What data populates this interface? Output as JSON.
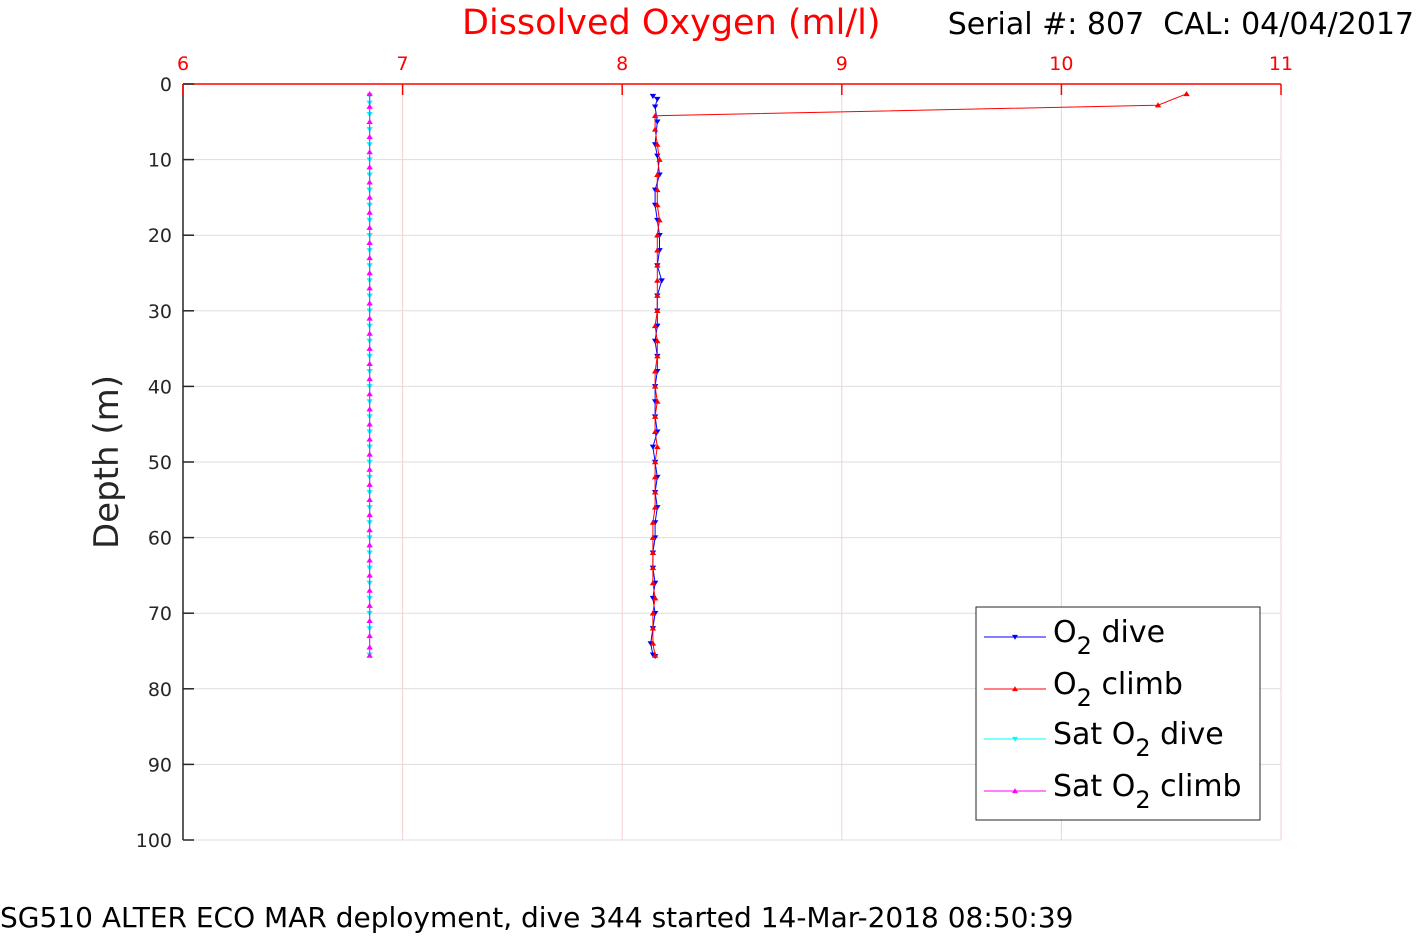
{
  "chart_data": {
    "type": "line",
    "title": "Dissolved Oxygen (ml/l)",
    "subtitle": "Serial #: 807  CAL: 04/04/2017",
    "xlabel": "",
    "ylabel": "Depth (m)",
    "caption": "SG510 ALTER ECO MAR deployment, dive 344 started 14-Mar-2018 08:50:39",
    "xlim": [
      6,
      11
    ],
    "ylim": [
      0,
      100
    ],
    "y_reversed": true,
    "x_axis_position": "top",
    "xticks": [
      6,
      7,
      8,
      9,
      10,
      11
    ],
    "yticks": [
      0,
      10,
      20,
      30,
      40,
      50,
      60,
      70,
      80,
      90,
      100
    ],
    "grid": true,
    "legend_placement": "bottom-right",
    "colors": {
      "title": "#ff0000",
      "xaxis": "#ff0000",
      "vgrid": "#f5d0d0",
      "hgrid": "#dddddd"
    },
    "series": [
      {
        "name": "O2 dive",
        "legend": {
          "prefix": "O",
          "sub": "2",
          "suffix": " dive"
        },
        "color": "#0000ff",
        "marker": "triangle-down",
        "x": [
          8.14,
          8.16,
          8.15,
          8.16,
          8.15,
          8.16,
          8.17,
          8.15,
          8.15,
          8.16,
          8.17,
          8.17,
          8.16,
          8.18,
          8.16,
          8.16,
          8.16,
          8.15,
          8.16,
          8.16,
          8.15,
          8.15,
          8.15,
          8.16,
          8.14,
          8.15,
          8.16,
          8.15,
          8.16,
          8.15,
          8.15,
          8.14,
          8.14,
          8.15,
          8.14,
          8.15,
          8.14,
          8.13,
          8.14,
          8.15
        ],
        "y": [
          1.6,
          2.0,
          3.0,
          5.0,
          8.0,
          9.5,
          12,
          14,
          16,
          18,
          20,
          22,
          24,
          26,
          28,
          30,
          32,
          34,
          36,
          38,
          40,
          42,
          44,
          46,
          48,
          50,
          52,
          54,
          56,
          58,
          60,
          62,
          64,
          66,
          68,
          70,
          72,
          74,
          75.5,
          75.7
        ]
      },
      {
        "name": "O2 climb",
        "legend": {
          "prefix": "O",
          "sub": "2",
          "suffix": " climb"
        },
        "color": "#ff0000",
        "marker": "triangle-up",
        "x": [
          10.57,
          10.44,
          8.15,
          8.15,
          8.16,
          8.17,
          8.16,
          8.16,
          8.16,
          8.17,
          8.16,
          8.16,
          8.16,
          8.16,
          8.16,
          8.16,
          8.15,
          8.16,
          8.16,
          8.15,
          8.15,
          8.16,
          8.15,
          8.15,
          8.16,
          8.15,
          8.15,
          8.15,
          8.15,
          8.14,
          8.14,
          8.14,
          8.14,
          8.14,
          8.15,
          8.14,
          8.14,
          8.14,
          8.15
        ],
        "y": [
          1.3,
          2.8,
          4.2,
          6,
          8,
          10,
          12,
          14,
          16,
          18,
          20,
          22,
          24,
          26,
          28,
          30,
          32,
          34,
          36,
          38,
          40,
          42,
          44,
          46,
          48,
          50,
          52,
          54,
          56,
          58,
          60,
          62,
          64,
          66,
          68,
          70,
          72,
          74,
          75.6
        ]
      },
      {
        "name": "Sat O2 dive",
        "legend": {
          "prefix": "Sat O",
          "sub": "2",
          "suffix": " dive"
        },
        "color": "#00ffff",
        "marker": "triangle-down",
        "x": [
          6.85,
          6.85,
          6.85,
          6.85,
          6.85,
          6.85,
          6.85,
          6.85,
          6.85,
          6.85,
          6.85,
          6.85,
          6.85,
          6.85,
          6.85,
          6.85,
          6.85,
          6.85,
          6.85,
          6.85,
          6.85,
          6.85,
          6.85,
          6.85,
          6.85,
          6.85,
          6.85,
          6.85,
          6.85,
          6.85,
          6.85,
          6.85,
          6.85,
          6.85,
          6.85,
          6.85,
          6.85,
          6.85
        ],
        "y": [
          1.5,
          2.5,
          4,
          6,
          8,
          10,
          12,
          14,
          16,
          18,
          20,
          22,
          24,
          26,
          28,
          30,
          32,
          34,
          36,
          38,
          40,
          42,
          44,
          46,
          48,
          50,
          52,
          54,
          56,
          58,
          60,
          62,
          64,
          66,
          68,
          70,
          72,
          75.5
        ]
      },
      {
        "name": "Sat O2 climb",
        "legend": {
          "prefix": "Sat O",
          "sub": "2",
          "suffix": " climb"
        },
        "color": "#ff00ff",
        "marker": "triangle-up",
        "x": [
          6.85,
          6.85,
          6.85,
          6.85,
          6.85,
          6.85,
          6.85,
          6.85,
          6.85,
          6.85,
          6.85,
          6.85,
          6.85,
          6.85,
          6.85,
          6.85,
          6.85,
          6.85,
          6.85,
          6.85,
          6.85,
          6.85,
          6.85,
          6.85,
          6.85,
          6.85,
          6.85,
          6.85,
          6.85,
          6.85,
          6.85,
          6.85,
          6.85,
          6.85,
          6.85,
          6.85,
          6.85,
          6.85,
          6.85
        ],
        "y": [
          1.3,
          3,
          5,
          7,
          9,
          11,
          13,
          15,
          17,
          19,
          21,
          23,
          25,
          27,
          29,
          31,
          33,
          35,
          37,
          39,
          41,
          43,
          45,
          47,
          49,
          51,
          53,
          55,
          57,
          59,
          61,
          63,
          65,
          67,
          69,
          71,
          73,
          74.5,
          75.6
        ]
      }
    ]
  }
}
